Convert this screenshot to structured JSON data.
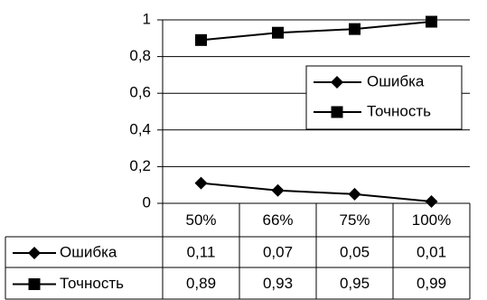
{
  "chart_data": {
    "type": "line",
    "categories": [
      "50%",
      "66%",
      "75%",
      "100%"
    ],
    "series": [
      {
        "name": "Ошибка",
        "marker": "diamond",
        "values": [
          0.11,
          0.07,
          0.05,
          0.01
        ]
      },
      {
        "name": "Точность",
        "marker": "square",
        "values": [
          0.89,
          0.93,
          0.95,
          0.99
        ]
      }
    ],
    "ylim": [
      0,
      1
    ],
    "yticks": [
      "0",
      "0,2",
      "0,4",
      "0,6",
      "0,8",
      "1"
    ],
    "data_table": [
      {
        "series": "Ошибка",
        "cells": [
          "0,11",
          "0,07",
          "0,05",
          "0,01"
        ]
      },
      {
        "series": "Точность",
        "cells": [
          "0,89",
          "0,93",
          "0,95",
          "0,99"
        ]
      }
    ],
    "grid": true,
    "legend": "right-middle",
    "colors": {
      "line": "#000000",
      "grid": "#000000",
      "background": "#ffffff"
    }
  }
}
